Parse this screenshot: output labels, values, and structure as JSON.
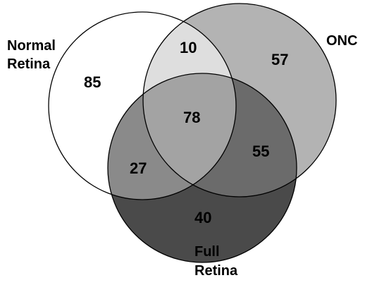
{
  "sets": {
    "normal_retina": {
      "label_line1": "Normal",
      "label_line2": "Retina",
      "color": "#ffffff"
    },
    "onc": {
      "label": "ONC",
      "color": "#b3b3b3"
    },
    "full_retina": {
      "label_line1": "Full",
      "label_line2": "Retina",
      "color": "#4a4a4a"
    }
  },
  "regions": {
    "normal_only": "85",
    "normal_onc": "10",
    "onc_only": "57",
    "all_three": "78",
    "normal_full": "27",
    "onc_full": "55",
    "full_only": "40"
  },
  "region_colors": {
    "normal_onc": "#dedede",
    "all_three": "#a3a3a3",
    "normal_full": "#8a8a8a",
    "onc_full": "#6b6b6b"
  }
}
